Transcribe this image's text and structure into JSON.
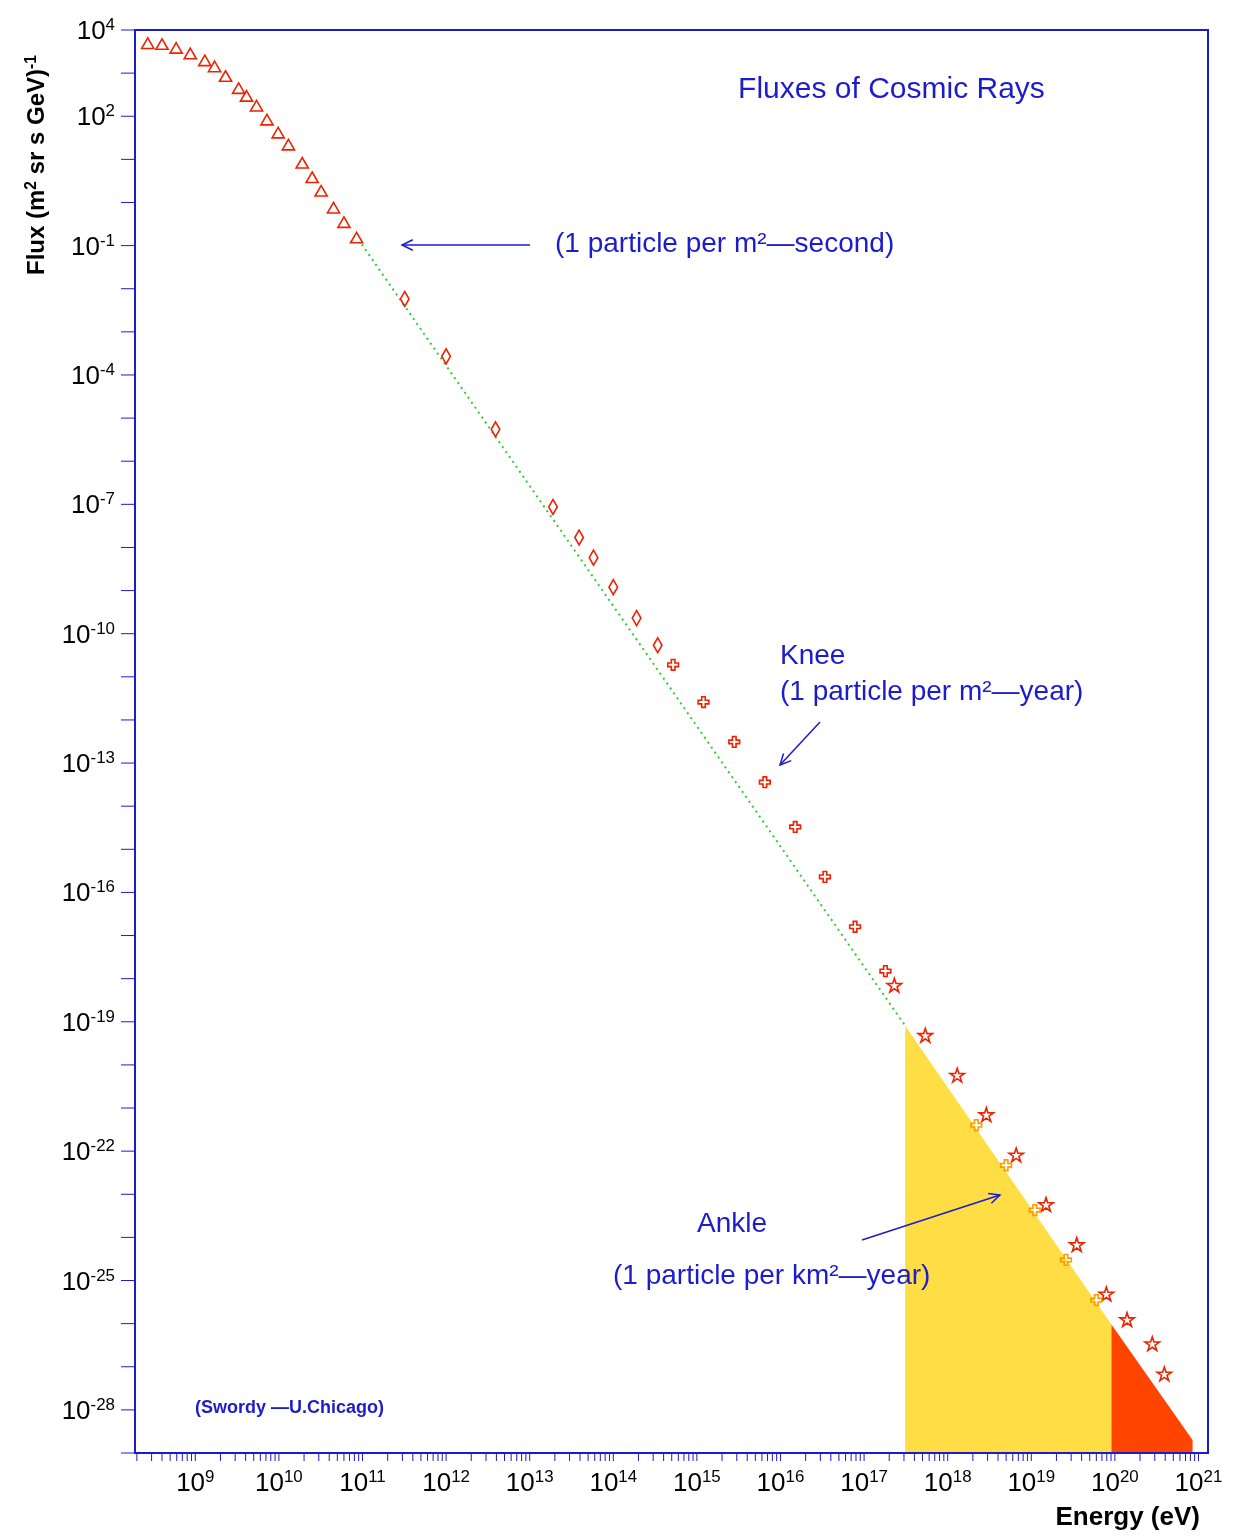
{
  "chart_data": {
    "type": "scatter",
    "title": "Fluxes of Cosmic Rays",
    "xlabel": "Energy (eV)",
    "ylabel": "Flux (m$^{2}$ sr s GeV)$^{-1}$",
    "log": "xy",
    "xlim": [
      190000000.0,
      1.3e+21
    ],
    "ylim": [
      1e-29,
      10000.0
    ],
    "xticks": [
      {
        "value": 200000000.0,
        "label": null
      },
      {
        "value": 300000000.0,
        "label": null
      },
      {
        "value": 400000000.0,
        "label": null
      },
      {
        "value": 500000000.0,
        "label": null
      },
      {
        "value": 600000000.0,
        "label": null
      },
      {
        "value": 700000000.0,
        "label": null
      },
      {
        "value": 800000000.0,
        "label": null
      },
      {
        "value": 900000000.0,
        "label": null
      },
      {
        "value": 1000000000.0,
        "label": "10$^{9}$"
      },
      {
        "value": 2000000000.0,
        "label": null
      },
      {
        "value": 3000000000.0,
        "label": null
      },
      {
        "value": 4000000000.0,
        "label": null
      },
      {
        "value": 5000000000.0,
        "label": null
      },
      {
        "value": 6000000000.0,
        "label": null
      },
      {
        "value": 7000000000.0,
        "label": null
      },
      {
        "value": 8000000000.0,
        "label": null
      },
      {
        "value": 9000000000.0,
        "label": null
      },
      {
        "value": 10000000000.0,
        "label": "10$^{10}$"
      },
      {
        "value": 20000000000.0,
        "label": null
      },
      {
        "value": 30000000000.0,
        "label": null
      },
      {
        "value": 40000000000.0,
        "label": null
      },
      {
        "value": 50000000000.0,
        "label": null
      },
      {
        "value": 60000000000.0,
        "label": null
      },
      {
        "value": 70000000000.0,
        "label": null
      },
      {
        "value": 80000000000.0,
        "label": null
      },
      {
        "value": 90000000000.0,
        "label": null
      },
      {
        "value": 100000000000.0,
        "label": "10$^{11}$"
      },
      {
        "value": 200000000000.0,
        "label": null
      },
      {
        "value": 300000000000.0,
        "label": null
      },
      {
        "value": 400000000000.0,
        "label": null
      },
      {
        "value": 500000000000.0,
        "label": null
      },
      {
        "value": 600000000000.0,
        "label": null
      },
      {
        "value": 700000000000.0,
        "label": null
      },
      {
        "value": 800000000000.0,
        "label": null
      },
      {
        "value": 900000000000.0,
        "label": null
      },
      {
        "value": 1000000000000.0,
        "label": "10$^{12}$"
      },
      {
        "value": 2000000000000.0,
        "label": null
      },
      {
        "value": 3000000000000.0,
        "label": null
      },
      {
        "value": 4000000000000.0,
        "label": null
      },
      {
        "value": 5000000000000.0,
        "label": null
      },
      {
        "value": 6000000000000.0,
        "label": null
      },
      {
        "value": 7000000000000.0,
        "label": null
      },
      {
        "value": 8000000000000.0,
        "label": null
      },
      {
        "value": 9000000000000.0,
        "label": null
      },
      {
        "value": 10000000000000.0,
        "label": "10$^{13}$"
      },
      {
        "value": 20000000000000.0,
        "label": null
      },
      {
        "value": 30000000000000.0,
        "label": null
      },
      {
        "value": 40000000000000.0,
        "label": null
      },
      {
        "value": 50000000000000.0,
        "label": null
      },
      {
        "value": 60000000000000.0,
        "label": null
      },
      {
        "value": 70000000000000.0,
        "label": null
      },
      {
        "value": 80000000000000.0,
        "label": null
      },
      {
        "value": 90000000000000.0,
        "label": null
      },
      {
        "value": 100000000000000.0,
        "label": "10$^{14}$"
      },
      {
        "value": 200000000000000.0,
        "label": null
      },
      {
        "value": 300000000000000.0,
        "label": null
      },
      {
        "value": 400000000000000.0,
        "label": null
      },
      {
        "value": 500000000000000.0,
        "label": null
      },
      {
        "value": 600000000000000.0,
        "label": null
      },
      {
        "value": 700000000000000.0,
        "label": null
      },
      {
        "value": 800000000000000.0,
        "label": null
      },
      {
        "value": 900000000000000.0,
        "label": null
      },
      {
        "value": 1000000000000000.0,
        "label": "10$^{15}$"
      },
      {
        "value": 2000000000000000.0,
        "label": null
      },
      {
        "value": 3000000000000000.0,
        "label": null
      },
      {
        "value": 4000000000000000.0,
        "label": null
      },
      {
        "value": 5000000000000000.0,
        "label": null
      },
      {
        "value": 6000000000000000.0,
        "label": null
      },
      {
        "value": 7000000000000000.0,
        "label": null
      },
      {
        "value": 8000000000000000.0,
        "label": null
      },
      {
        "value": 9000000000000000.0,
        "label": null
      },
      {
        "value": 1e+16,
        "label": "10$^{16}$"
      },
      {
        "value": 2e+16,
        "label": null
      },
      {
        "value": 3e+16,
        "label": null
      },
      {
        "value": 4e+16,
        "label": null
      },
      {
        "value": 5e+16,
        "label": null
      },
      {
        "value": 6e+16,
        "label": null
      },
      {
        "value": 7e+16,
        "label": null
      },
      {
        "value": 8e+16,
        "label": null
      },
      {
        "value": 9e+16,
        "label": null
      },
      {
        "value": 1e+17,
        "label": "10$^{17}$"
      },
      {
        "value": 2e+17,
        "label": null
      },
      {
        "value": 3e+17,
        "label": null
      },
      {
        "value": 4e+17,
        "label": null
      },
      {
        "value": 5e+17,
        "label": null
      },
      {
        "value": 6e+17,
        "label": null
      },
      {
        "value": 7e+17,
        "label": null
      },
      {
        "value": 8e+17,
        "label": null
      },
      {
        "value": 9e+17,
        "label": null
      },
      {
        "value": 1e+18,
        "label": "10$^{18}$"
      },
      {
        "value": 2e+18,
        "label": null
      },
      {
        "value": 3e+18,
        "label": null
      },
      {
        "value": 4e+18,
        "label": null
      },
      {
        "value": 5e+18,
        "label": null
      },
      {
        "value": 6e+18,
        "label": null
      },
      {
        "value": 7e+18,
        "label": null
      },
      {
        "value": 8e+18,
        "label": null
      },
      {
        "value": 9e+18,
        "label": null
      },
      {
        "value": 1e+19,
        "label": "10$^{19}$"
      },
      {
        "value": 2e+19,
        "label": null
      },
      {
        "value": 3e+19,
        "label": null
      },
      {
        "value": 4e+19,
        "label": null
      },
      {
        "value": 5e+19,
        "label": null
      },
      {
        "value": 6e+19,
        "label": null
      },
      {
        "value": 7e+19,
        "label": null
      },
      {
        "value": 8e+19,
        "label": null
      },
      {
        "value": 9e+19,
        "label": null
      },
      {
        "value": 1e+20,
        "label": "10$^{20}$"
      },
      {
        "value": 2e+20,
        "label": null
      },
      {
        "value": 3e+20,
        "label": null
      },
      {
        "value": 4e+20,
        "label": null
      },
      {
        "value": 5e+20,
        "label": null
      },
      {
        "value": 6e+20,
        "label": null
      },
      {
        "value": 7e+20,
        "label": null
      },
      {
        "value": 8e+20,
        "label": null
      },
      {
        "value": 9e+20,
        "label": null
      },
      {
        "value": 1e+21,
        "label": "10$^{21}$"
      }
    ],
    "yticks": [
      {
        "value": 10000.0,
        "label": "10$^{4}$"
      },
      {
        "value": 1000.0,
        "label": null
      },
      {
        "value": 100.0,
        "label": "10$^{2}$"
      },
      {
        "value": 10.0,
        "label": null
      },
      {
        "value": 1,
        "label": null
      },
      {
        "value": 0.1,
        "label": "10$^{-1}$"
      },
      {
        "value": 0.01,
        "label": null
      },
      {
        "value": 0.001,
        "label": null
      },
      {
        "value": 0.0001,
        "label": "10$^{-4}$"
      },
      {
        "value": 1e-05,
        "label": null
      },
      {
        "value": 1e-06,
        "label": null
      },
      {
        "value": 1e-07,
        "label": "10$^{-7}$"
      },
      {
        "value": 1e-08,
        "label": null
      },
      {
        "value": 1e-09,
        "label": null
      },
      {
        "value": 1e-10,
        "label": "10$^{-10}$"
      },
      {
        "value": 1e-11,
        "label": null
      },
      {
        "value": 1e-12,
        "label": null
      },
      {
        "value": 1e-13,
        "label": "10$^{-13}$"
      },
      {
        "value": 1e-14,
        "label": null
      },
      {
        "value": 1e-15,
        "label": null
      },
      {
        "value": 1e-16,
        "label": "10$^{-16}$"
      },
      {
        "value": 1e-17,
        "label": null
      },
      {
        "value": 1e-18,
        "label": null
      },
      {
        "value": 1e-19,
        "label": "10$^{-19}$"
      },
      {
        "value": 1e-20,
        "label": null
      },
      {
        "value": 1e-21,
        "label": null
      },
      {
        "value": 1e-22,
        "label": "10$^{-22}$"
      },
      {
        "value": 1e-23,
        "label": null
      },
      {
        "value": 1e-24,
        "label": null
      },
      {
        "value": 1e-25,
        "label": "10$^{-25}$"
      },
      {
        "value": 1e-26,
        "label": null
      },
      {
        "value": 1e-27,
        "label": null
      },
      {
        "value": 1e-28,
        "label": "10$^{-28}$"
      },
      {
        "value": 1e-29,
        "label": null
      }
    ],
    "series": [
      {
        "type": "area",
        "color": "#ffdd44",
        "x": [
          3.1e+17,
          9.1e+19
        ],
        "values": [
          8.1e-20,
          9.5e-27
        ]
      },
      {
        "type": "area",
        "color": "#ff4400",
        "x": [
          9.1e+19,
          8.5e+20
        ],
        "values": [
          9.5e-27,
          2e-29
        ]
      },
      {
        "type": "line",
        "color": "#33cc33",
        "line_style": "dotted",
        "marker": "none",
        "x": [
          98000000000.0,
          3.1e+17
        ],
        "values": [
          0.107,
          8.1e-20
        ]
      },
      {
        "type": "scatter",
        "color": "#ee2200",
        "marker": "triangle",
        "x": [
          270000000.0,
          400000000.0,
          590000000.0,
          870000000.0,
          1300000000.0,
          1700000000.0,
          2300000000.0,
          3300000000.0,
          4100000000.0,
          5400000000.0,
          7200000000.0,
          9800000000.0,
          13000000000.0,
          19000000000.0,
          25000000000.0,
          32000000000.0,
          45000000000.0,
          60000000000.0,
          85000000000.0
        ],
        "values": [
          4500,
          4300,
          3500,
          2600,
          1800,
          1300,
          780,
          410,
          270,
          160,
          76,
          38,
          20,
          7.6,
          3.5,
          1.7,
          0.69,
          0.32,
          0.14
        ]
      },
      {
        "type": "scatter",
        "color": "#ee2200",
        "marker": "diamond",
        "x": [
          320000000000.0,
          1000000000000.0,
          3900000000000.0,
          19000000000000.0,
          39000000000000.0,
          58000000000000.0,
          100000000000000.0,
          190000000000000.0,
          340000000000000.0
        ],
        "values": [
          0.0058,
          0.00027,
          5.5e-06,
          8.7e-08,
          1.7e-08,
          5.8e-09,
          1.2e-09,
          2.3e-10,
          5.4e-11
        ]
      },
      {
        "type": "scatter",
        "color": "#ee2200",
        "marker": "cross",
        "x": [
          520000000000000.0,
          1200000000000000.0,
          2800000000000000.0,
          6500000000000000.0,
          1.5e+16,
          3.4e+16,
          7.8e+16,
          1.8e+17
        ],
        "values": [
          1.9e-11,
          2.6e-12,
          3.1e-13,
          3.6e-14,
          3.3e-15,
          2.3e-16,
          1.6e-17,
          1.5e-18
        ]
      },
      {
        "type": "scatter",
        "color": "#ee2200",
        "marker": "star",
        "x": [
          2.3e+17,
          5.4e+17,
          1.3e+18,
          2.9e+18,
          6.6e+18,
          1.5e+19,
          3.5e+19,
          7.9e+19,
          1.4e+20,
          2.8e+20,
          3.9e+20
        ],
        "values": [
          6.8e-19,
          4.7e-20,
          5.6e-21,
          6.8e-22,
          7.9e-23,
          5.6e-24,
          6.6e-25,
          4.7e-26,
          1.2e-26,
          3.3e-27,
          6.6e-28
        ]
      },
      {
        "type": "scatter",
        "color": "#ff9900",
        "marker": "cross",
        "x": [
          2.2e+18,
          5e+18,
          1.1e+19,
          2.6e+19,
          6e+19
        ],
        "values": [
          4e-22,
          4.7e-23,
          4.3e-24,
          3e-25,
          3.5e-26
        ]
      }
    ],
    "annotations": [
      "(1 particle per m²—second)",
      "Knee\n(1 particle per m²—year)",
      "Ankle\n(1 particle per km²—year)",
      "(Swordy —U.Chicago)"
    ]
  }
}
